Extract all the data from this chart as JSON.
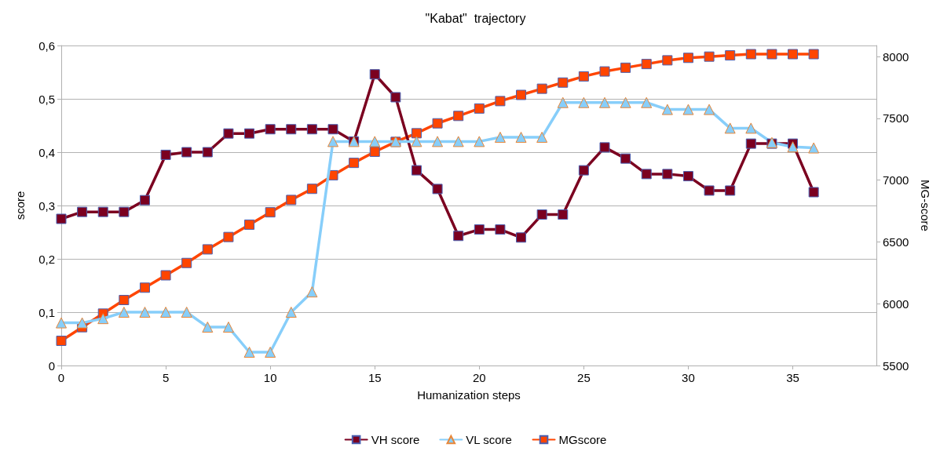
{
  "chart_data": {
    "type": "line",
    "title": "\"Kabat\"  trajectory",
    "xlabel": "Humanization steps",
    "ylabel": "score",
    "y2label": "MG-score",
    "x": [
      0,
      1,
      2,
      3,
      4,
      5,
      6,
      7,
      8,
      9,
      10,
      11,
      12,
      13,
      14,
      15,
      16,
      17,
      18,
      19,
      20,
      21,
      22,
      23,
      24,
      25,
      26,
      27,
      28,
      29,
      30,
      31,
      32,
      33,
      34,
      35,
      36
    ],
    "xlim": [
      0,
      39
    ],
    "xticks": [
      0,
      5,
      10,
      15,
      20,
      25,
      30,
      35
    ],
    "ylim": [
      0,
      0.6
    ],
    "yticks": [
      0,
      {
        "value": 0.1,
        "label": "0,1"
      },
      {
        "value": 0.2,
        "label": "0,2"
      },
      {
        "value": 0.3,
        "label": "0,3"
      },
      {
        "value": 0.4,
        "label": "0,4"
      },
      {
        "value": 0.5,
        "label": "0,5"
      },
      {
        "value": 0.6,
        "label": "0,6"
      }
    ],
    "y2lim": [
      5500,
      8090
    ],
    "y2ticks": [
      5500,
      6000,
      6500,
      7000,
      7500,
      8000
    ],
    "grid": "y",
    "legend": "bottom",
    "line_style": "solid",
    "series": [
      {
        "name": "VH score",
        "color": "#7b0020",
        "marker": "square",
        "values": [
          0.275,
          0.288,
          0.288,
          0.288,
          0.31,
          0.395,
          0.4,
          0.4,
          0.435,
          0.435,
          0.443,
          0.443,
          0.443,
          0.443,
          0.42,
          0.546,
          0.503,
          0.366,
          0.331,
          0.243,
          0.255,
          0.255,
          0.24,
          0.283,
          0.283,
          0.366,
          0.409,
          0.388,
          0.359,
          0.359,
          0.355,
          0.328,
          0.328,
          0.416,
          0.416,
          0.416,
          0.325
        ]
      },
      {
        "name": "VL score",
        "color": "#87cefa",
        "marker": "triangle",
        "values": [
          0.08,
          0.08,
          0.088,
          0.1,
          0.1,
          0.1,
          0.1,
          0.072,
          0.072,
          0.025,
          0.025,
          0.1,
          0.138,
          0.42,
          0.42,
          0.42,
          0.42,
          0.42,
          0.42,
          0.42,
          0.42,
          0.428,
          0.428,
          0.428,
          0.493,
          0.493,
          0.493,
          0.493,
          0.493,
          0.48,
          0.48,
          0.48,
          0.445,
          0.445,
          0.418,
          0.41,
          0.408
        ]
      },
      {
        "name": "MGscore",
        "color": "#ff4500",
        "marker": "square",
        "axis": "y2",
        "values": [
          5700,
          5810,
          5920,
          6030,
          6130,
          6230,
          6330,
          6440,
          6540,
          6640,
          6740,
          6840,
          6930,
          7040,
          7140,
          7230,
          7310,
          7380,
          7460,
          7520,
          7580,
          7640,
          7690,
          7740,
          7790,
          7840,
          7880,
          7910,
          7940,
          7970,
          7990,
          8000,
          8010,
          8020,
          8020,
          8020,
          8020
        ]
      }
    ]
  }
}
